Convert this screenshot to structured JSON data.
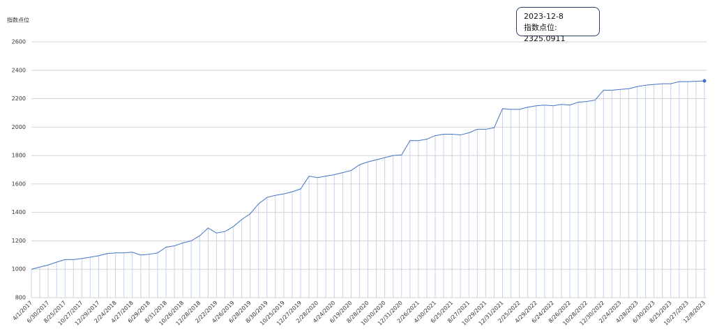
{
  "chart_data": {
    "type": "line",
    "y_label": "指数点位",
    "tooltip": {
      "date": "2023-12-8",
      "label": "指数点位: 2325.0911"
    },
    "color": "#4472c4",
    "grid": true,
    "ylim": [
      800,
      2600
    ],
    "yticks": [
      800,
      1000,
      1200,
      1400,
      1600,
      1800,
      2000,
      2200,
      2400,
      2600
    ],
    "categories": [
      "4/1/2017",
      null,
      "6/30/2017",
      null,
      "8/25/2017",
      null,
      "10/27/2017",
      null,
      "12/29/2017",
      null,
      "2/24/2018",
      null,
      "4/27/2018",
      null,
      "6/29/2018",
      null,
      "8/31/2018",
      null,
      "10/26/2018",
      null,
      "12/28/2018",
      null,
      "2/22/2019",
      null,
      "4/26/2019",
      null,
      "6/28/2019",
      null,
      "8/30/2019",
      null,
      "10/25/2019",
      null,
      "12/27/2019",
      null,
      "2/28/2020",
      null,
      "4/24/2020",
      null,
      "6/19/2020",
      null,
      "8/28/2020",
      null,
      "10/30/2020",
      null,
      "12/31/2020",
      null,
      "2/26/2021",
      null,
      "4/30/2021",
      null,
      "6/25/2021",
      null,
      "8/27/2021",
      null,
      "10/29/2021",
      null,
      "12/31/2021",
      null,
      "2/25/2022",
      null,
      "4/29/2022",
      null,
      "6/24/2022",
      null,
      "8/26/2022",
      null,
      "10/28/2022",
      null,
      "12/30/2022",
      null,
      "2/24/2023",
      null,
      "4/28/2023",
      null,
      "6/30/2023",
      null,
      "8/25/2023",
      null,
      "10/27/2023",
      null,
      "12/8/2023"
    ],
    "values": [
      1000,
      1015,
      1030,
      1050,
      1068,
      1068,
      1075,
      1085,
      1095,
      1110,
      1115,
      1115,
      1120,
      1100,
      1105,
      1115,
      1155,
      1165,
      1185,
      1200,
      1235,
      1290,
      1255,
      1265,
      1300,
      1350,
      1390,
      1460,
      1505,
      1520,
      1530,
      1545,
      1565,
      1655,
      1645,
      1655,
      1665,
      1680,
      1695,
      1735,
      1755,
      1770,
      1785,
      1800,
      1805,
      1905,
      1905,
      1915,
      1940,
      1950,
      1950,
      1945,
      1960,
      1985,
      1985,
      1995,
      2130,
      2125,
      2125,
      2140,
      2150,
      2155,
      2150,
      2160,
      2155,
      2175,
      2180,
      2190,
      2260,
      2260,
      2265,
      2270,
      2285,
      2295,
      2300,
      2305,
      2305,
      2320,
      2320,
      2322,
      2325.0911
    ]
  }
}
